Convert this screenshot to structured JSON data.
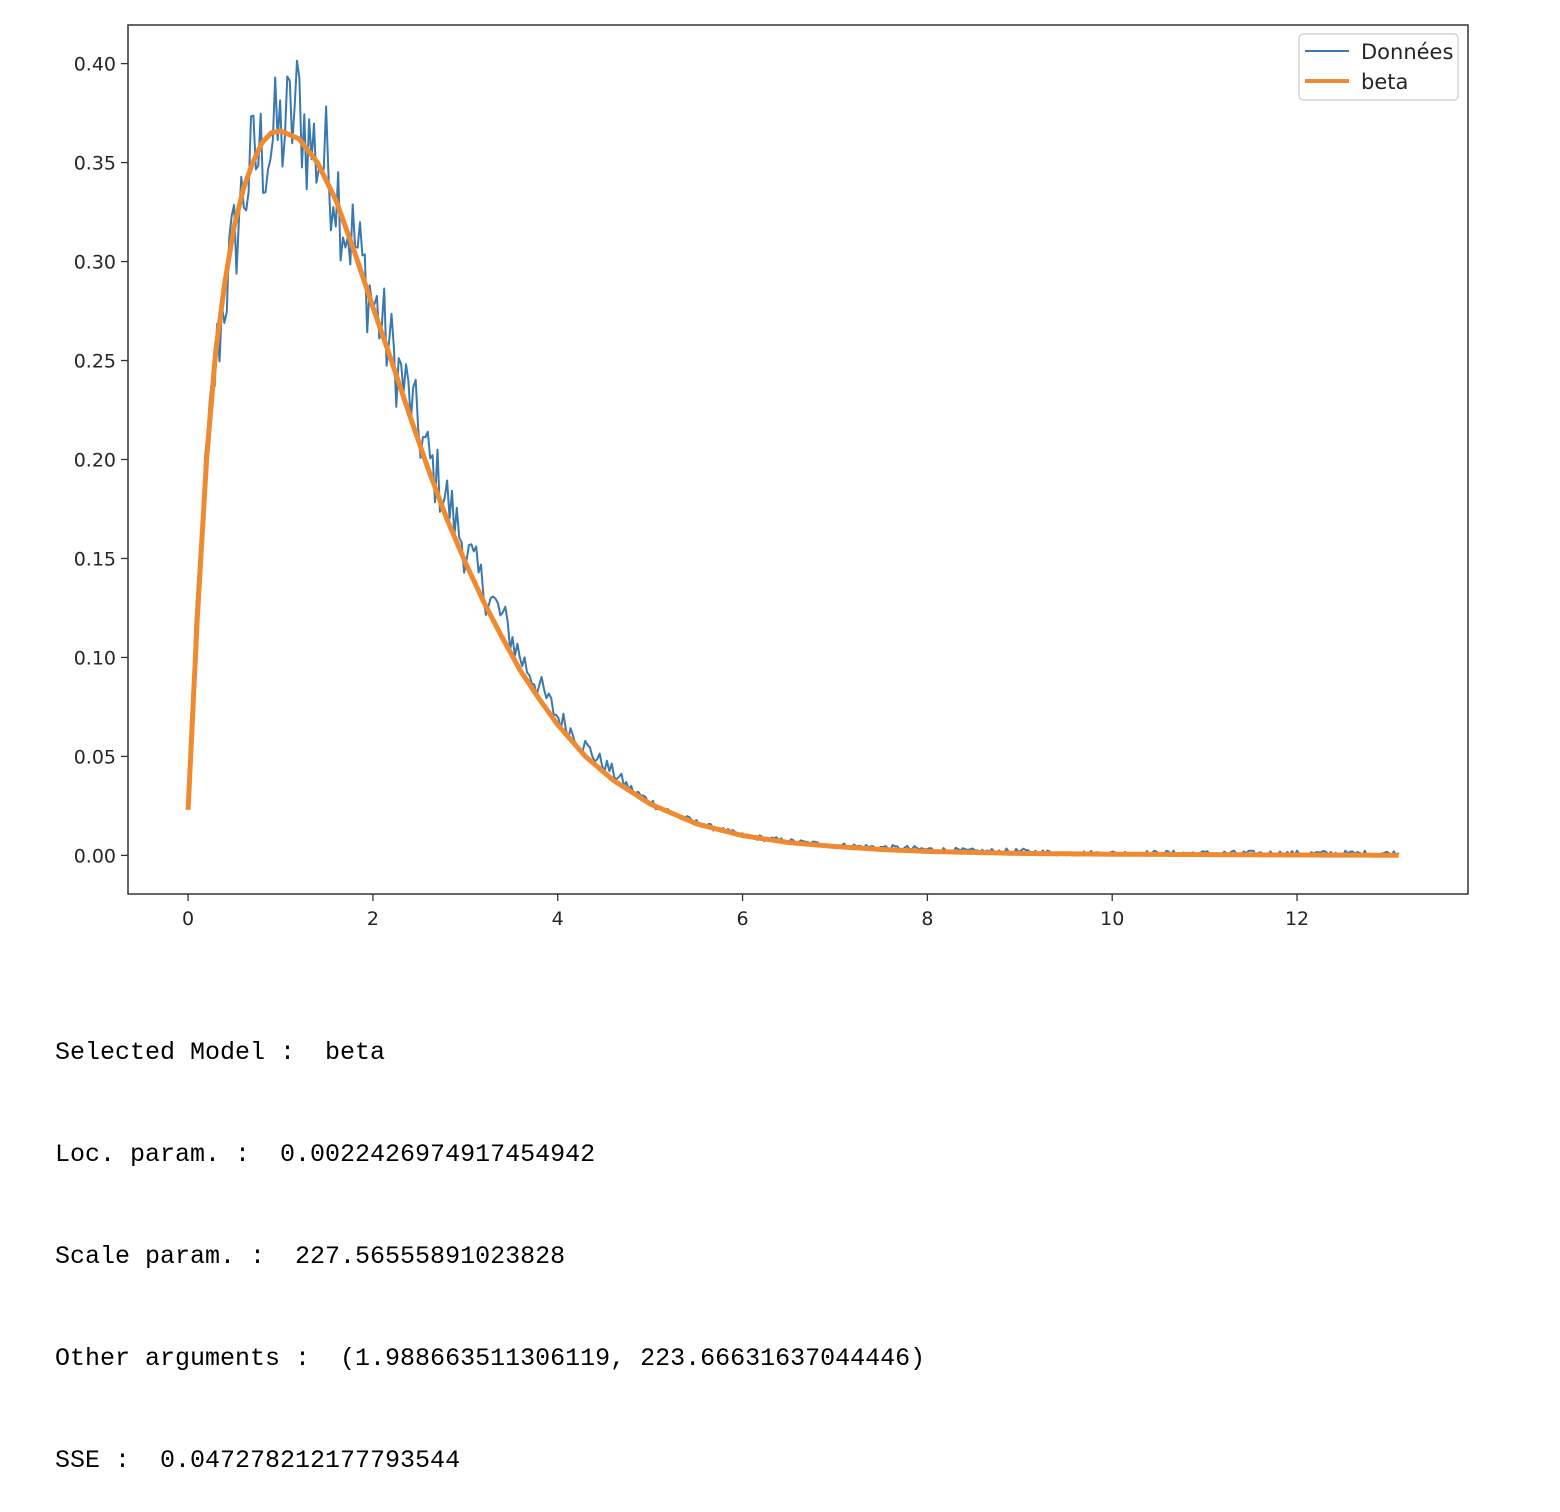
{
  "chart_data": {
    "type": "line",
    "title": "",
    "xlabel": "",
    "ylabel": "",
    "xlim": [
      -0.65,
      13.85
    ],
    "ylim": [
      -0.0195,
      0.4195
    ],
    "x_ticks": [
      0,
      2,
      4,
      6,
      8,
      10,
      12
    ],
    "x_tick_labels": [
      "0",
      "2",
      "4",
      "6",
      "8",
      "10",
      "12"
    ],
    "y_ticks": [
      0.0,
      0.05,
      0.1,
      0.15,
      0.2,
      0.25,
      0.3,
      0.35,
      0.4
    ],
    "y_tick_labels": [
      "0.00",
      "0.05",
      "0.10",
      "0.15",
      "0.20",
      "0.25",
      "0.30",
      "0.35",
      "0.40"
    ],
    "grid": false,
    "legend_position": "top-right",
    "series": [
      {
        "name": "Données",
        "color": "#3a78b0",
        "style": "thin-noisy",
        "x": [
          0.0,
          0.1,
          0.2,
          0.3,
          0.4,
          0.5,
          0.6,
          0.7,
          0.8,
          0.9,
          1.0,
          1.1,
          1.2,
          1.3,
          1.4,
          1.5,
          1.6,
          1.7,
          1.8,
          1.9,
          2.0,
          2.2,
          2.4,
          2.6,
          2.8,
          3.0,
          3.2,
          3.4,
          3.6,
          3.8,
          4.0,
          4.2,
          4.4,
          4.6,
          4.8,
          5.0,
          5.3,
          5.6,
          6.0,
          6.5,
          7.0,
          7.5,
          8.0,
          8.5,
          9.0,
          9.5,
          10.0,
          11.0,
          12.0,
          13.1
        ],
        "y": [
          0.023,
          0.13,
          0.2,
          0.25,
          0.285,
          0.31,
          0.335,
          0.35,
          0.355,
          0.36,
          0.365,
          0.37,
          0.38,
          0.36,
          0.355,
          0.35,
          0.34,
          0.32,
          0.31,
          0.295,
          0.28,
          0.255,
          0.23,
          0.2,
          0.18,
          0.155,
          0.135,
          0.12,
          0.1,
          0.085,
          0.07,
          0.06,
          0.05,
          0.042,
          0.033,
          0.027,
          0.02,
          0.015,
          0.01,
          0.007,
          0.005,
          0.004,
          0.003,
          0.002,
          0.002,
          0.001,
          0.001,
          0.001,
          0.001,
          0.001
        ]
      },
      {
        "name": "beta",
        "color": "#f08a30",
        "style": "thick-smooth",
        "x": [
          0.0,
          0.1,
          0.2,
          0.3,
          0.4,
          0.5,
          0.6,
          0.7,
          0.8,
          0.9,
          1.0,
          1.2,
          1.4,
          1.6,
          1.8,
          2.0,
          2.2,
          2.4,
          2.6,
          2.8,
          3.0,
          3.2,
          3.4,
          3.6,
          3.8,
          4.0,
          4.3,
          4.6,
          5.0,
          5.5,
          6.0,
          6.5,
          7.0,
          7.5,
          8.0,
          8.5,
          9.0,
          10.0,
          11.0,
          12.0,
          13.1
        ],
        "y": [
          0.023,
          0.12,
          0.2,
          0.255,
          0.29,
          0.318,
          0.337,
          0.35,
          0.36,
          0.365,
          0.366,
          0.362,
          0.35,
          0.331,
          0.305,
          0.277,
          0.25,
          0.222,
          0.195,
          0.17,
          0.148,
          0.128,
          0.11,
          0.093,
          0.079,
          0.066,
          0.05,
          0.038,
          0.026,
          0.016,
          0.01,
          0.0065,
          0.0045,
          0.003,
          0.002,
          0.0015,
          0.001,
          0.0006,
          0.0004,
          0.0002,
          0.0001
        ]
      }
    ]
  },
  "output": {
    "lines": [
      "Selected Model :  beta",
      "Loc. param. :  0.002242697491745494​2",
      "Scale param. :  227.56555891023828",
      "Other arguments :  (1.988663511306119, 223.66631637044446)",
      "SSE :  0.047278212177793544"
    ]
  }
}
